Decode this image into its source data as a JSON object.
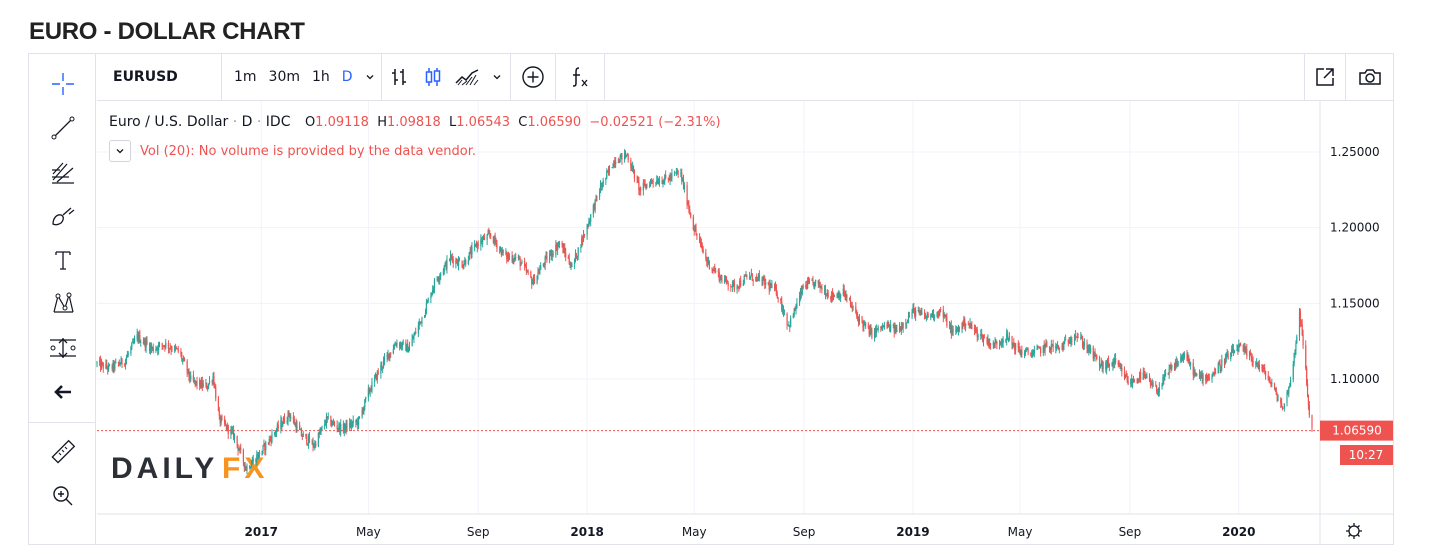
{
  "page_title": "EURO - DOLLAR CHART",
  "toolbar": {
    "symbol": "EURUSD",
    "intervals": [
      "1m",
      "30m",
      "1h",
      "D"
    ],
    "active_interval": "D",
    "icons": [
      "bar-chart-icon",
      "candles-icon",
      "area-chart-icon",
      "chevron-down-icon",
      "add-compare-icon",
      "indicators-icon",
      "popout-icon",
      "camera-icon"
    ]
  },
  "sidebar": {
    "tools": [
      "crosshair-icon",
      "trend-line-icon",
      "fib-icon",
      "brush-icon",
      "text-icon",
      "pattern-icon",
      "measure-icon",
      "back-arrow-icon",
      "ruler-icon",
      "zoom-in-icon"
    ]
  },
  "legend": {
    "title": "Euro / U.S. Dollar",
    "dot": "·",
    "interval": "D",
    "exchange": "IDC",
    "o_label": "O",
    "o_value": "1.09118",
    "h_label": "H",
    "h_value": "1.09818",
    "l_label": "L",
    "l_value": "1.06543",
    "c_label": "C",
    "c_value": "1.06590",
    "change": "−0.02521 (−2.31%)",
    "volume_note": "Vol (20): No volume is provided by the data vendor."
  },
  "watermark": {
    "part1": "DAILY",
    "part2": "FX"
  },
  "time_label": "10:27",
  "colors": {
    "up": "#26a69a",
    "down": "#ef5350",
    "accent": "#2962ff",
    "grid": "#f0f3fa",
    "watermark_dark": "#2b2f36",
    "watermark_orange": "#f7931e"
  },
  "chart_data": {
    "type": "candlestick",
    "title": "Euro / U.S. Dollar",
    "y_ticks": [
      1.25,
      1.2,
      1.15,
      1.1
    ],
    "y_tick_labels": [
      "1.25000",
      "1.20000",
      "1.15000",
      "1.10000"
    ],
    "ylim": [
      1.0,
      1.275
    ],
    "x_ticks": [
      {
        "label": "2017",
        "bold": true,
        "date": "2017-01-01"
      },
      {
        "label": "May",
        "bold": false,
        "date": "2017-05-01"
      },
      {
        "label": "Sep",
        "bold": false,
        "date": "2017-09-01"
      },
      {
        "label": "2018",
        "bold": true,
        "date": "2018-01-01"
      },
      {
        "label": "May",
        "bold": false,
        "date": "2018-05-01"
      },
      {
        "label": "Sep",
        "bold": false,
        "date": "2018-09-01"
      },
      {
        "label": "2019",
        "bold": true,
        "date": "2019-01-01"
      },
      {
        "label": "May",
        "bold": false,
        "date": "2019-05-01"
      },
      {
        "label": "Sep",
        "bold": false,
        "date": "2019-09-01"
      },
      {
        "label": "2020",
        "bold": true,
        "date": "2020-01-01"
      }
    ],
    "xlim": [
      "2016-07-01",
      "2020-03-23"
    ],
    "last_price": 1.0659,
    "last_price_label": "1.06590",
    "price_path": [
      [
        "2016-07-01",
        1.11
      ],
      [
        "2016-07-15",
        1.107
      ],
      [
        "2016-08-01",
        1.112
      ],
      [
        "2016-08-15",
        1.128
      ],
      [
        "2016-09-01",
        1.12
      ],
      [
        "2016-09-15",
        1.123
      ],
      [
        "2016-10-01",
        1.118
      ],
      [
        "2016-10-15",
        1.098
      ],
      [
        "2016-11-01",
        1.095
      ],
      [
        "2016-11-08",
        1.102
      ],
      [
        "2016-11-15",
        1.073
      ],
      [
        "2016-12-01",
        1.063
      ],
      [
        "2016-12-15",
        1.041
      ],
      [
        "2017-01-01",
        1.052
      ],
      [
        "2017-01-15",
        1.064
      ],
      [
        "2017-02-01",
        1.077
      ],
      [
        "2017-02-15",
        1.063
      ],
      [
        "2017-03-01",
        1.056
      ],
      [
        "2017-03-15",
        1.073
      ],
      [
        "2017-04-01",
        1.067
      ],
      [
        "2017-04-20",
        1.072
      ],
      [
        "2017-05-01",
        1.091
      ],
      [
        "2017-05-15",
        1.108
      ],
      [
        "2017-06-01",
        1.124
      ],
      [
        "2017-06-15",
        1.12
      ],
      [
        "2017-07-01",
        1.142
      ],
      [
        "2017-07-15",
        1.165
      ],
      [
        "2017-08-01",
        1.18
      ],
      [
        "2017-08-15",
        1.176
      ],
      [
        "2017-09-01",
        1.19
      ],
      [
        "2017-09-15",
        1.195
      ],
      [
        "2017-10-01",
        1.181
      ],
      [
        "2017-10-15",
        1.18
      ],
      [
        "2017-11-01",
        1.164
      ],
      [
        "2017-11-15",
        1.178
      ],
      [
        "2017-12-01",
        1.19
      ],
      [
        "2017-12-15",
        1.174
      ],
      [
        "2018-01-01",
        1.201
      ],
      [
        "2018-01-15",
        1.225
      ],
      [
        "2018-02-01",
        1.245
      ],
      [
        "2018-02-15",
        1.248
      ],
      [
        "2018-03-01",
        1.225
      ],
      [
        "2018-03-15",
        1.231
      ],
      [
        "2018-04-01",
        1.232
      ],
      [
        "2018-04-15",
        1.237
      ],
      [
        "2018-05-01",
        1.199
      ],
      [
        "2018-05-15",
        1.178
      ],
      [
        "2018-06-01",
        1.166
      ],
      [
        "2018-06-15",
        1.161
      ],
      [
        "2018-07-01",
        1.168
      ],
      [
        "2018-07-15",
        1.165
      ],
      [
        "2018-08-01",
        1.158
      ],
      [
        "2018-08-15",
        1.135
      ],
      [
        "2018-09-01",
        1.162
      ],
      [
        "2018-09-15",
        1.163
      ],
      [
        "2018-10-01",
        1.155
      ],
      [
        "2018-10-15",
        1.157
      ],
      [
        "2018-11-01",
        1.14
      ],
      [
        "2018-11-15",
        1.13
      ],
      [
        "2018-12-01",
        1.135
      ],
      [
        "2018-12-15",
        1.132
      ],
      [
        "2019-01-01",
        1.145
      ],
      [
        "2019-01-15",
        1.141
      ],
      [
        "2019-02-01",
        1.145
      ],
      [
        "2019-02-15",
        1.13
      ],
      [
        "2019-03-01",
        1.138
      ],
      [
        "2019-03-15",
        1.13
      ],
      [
        "2019-04-01",
        1.122
      ],
      [
        "2019-04-15",
        1.128
      ],
      [
        "2019-05-01",
        1.118
      ],
      [
        "2019-05-15",
        1.117
      ],
      [
        "2019-06-01",
        1.122
      ],
      [
        "2019-06-15",
        1.12
      ],
      [
        "2019-07-01",
        1.13
      ],
      [
        "2019-07-15",
        1.121
      ],
      [
        "2019-08-01",
        1.108
      ],
      [
        "2019-08-15",
        1.111
      ],
      [
        "2019-09-01",
        1.097
      ],
      [
        "2019-09-15",
        1.103
      ],
      [
        "2019-10-01",
        1.092
      ],
      [
        "2019-10-15",
        1.105
      ],
      [
        "2019-11-01",
        1.116
      ],
      [
        "2019-11-15",
        1.101
      ],
      [
        "2019-12-01",
        1.102
      ],
      [
        "2019-12-15",
        1.112
      ],
      [
        "2020-01-01",
        1.121
      ],
      [
        "2020-01-15",
        1.114
      ],
      [
        "2020-02-01",
        1.103
      ],
      [
        "2020-02-20",
        1.08
      ],
      [
        "2020-03-01",
        1.105
      ],
      [
        "2020-03-09",
        1.145
      ],
      [
        "2020-03-15",
        1.112
      ],
      [
        "2020-03-20",
        1.076
      ],
      [
        "2020-03-23",
        1.0659
      ]
    ]
  }
}
